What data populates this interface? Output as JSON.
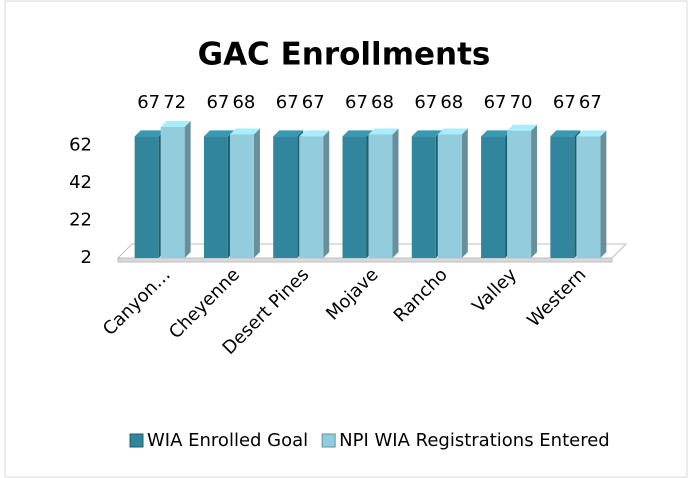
{
  "chart_data": {
    "type": "bar3d",
    "title": "GAC Enrollments",
    "categories": [
      "Canyon…",
      "Cheyenne",
      "Desert Pines",
      "Mojave",
      "Rancho",
      "Valley",
      "Western"
    ],
    "series": [
      {
        "name": "WIA Enrolled Goal",
        "color": "#31859c",
        "values": [
          67,
          67,
          67,
          67,
          67,
          67,
          67
        ]
      },
      {
        "name": "NPI WIA Registrations Entered",
        "color": "#93cddd",
        "values": [
          72,
          68,
          67,
          68,
          68,
          70,
          67
        ]
      }
    ],
    "ylim": [
      2,
      72
    ],
    "yticks": [
      2,
      22,
      42,
      62
    ],
    "legend": "bottom"
  }
}
